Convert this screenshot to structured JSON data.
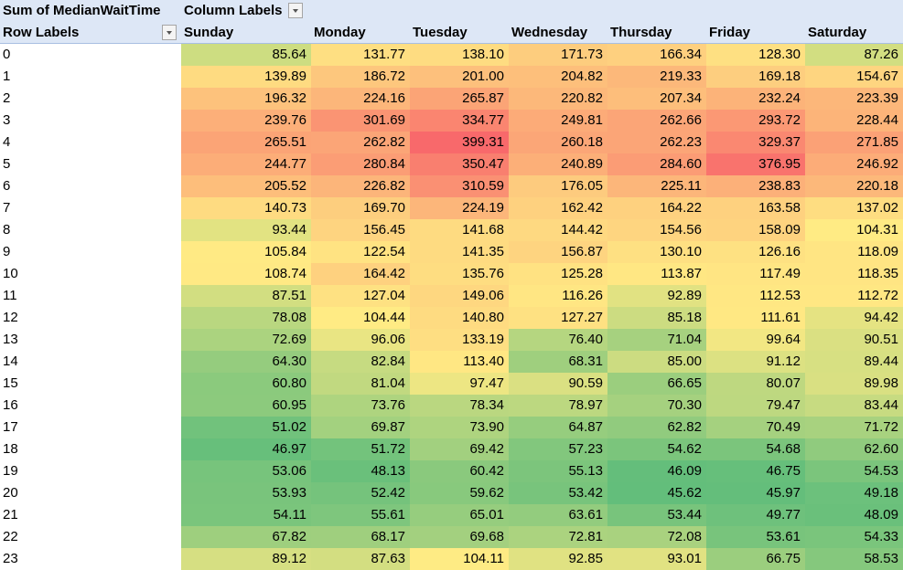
{
  "pivot": {
    "header": {
      "value_field": "Sum of MedianWaitTime",
      "column_labels": "Column Labels",
      "row_labels": "Row Labels"
    },
    "icons": {
      "column_filter": "filter-dropdown-icon",
      "row_filter": "filter-dropdown-icon"
    },
    "columns": [
      "Sunday",
      "Monday",
      "Tuesday",
      "Wednesday",
      "Thursday",
      "Friday",
      "Saturday"
    ],
    "rows": [
      {
        "label": "0",
        "values": [
          "85.64",
          "131.77",
          "138.10",
          "171.73",
          "166.34",
          "128.30",
          "87.26"
        ]
      },
      {
        "label": "1",
        "values": [
          "139.89",
          "186.72",
          "201.00",
          "204.82",
          "219.33",
          "169.18",
          "154.67"
        ]
      },
      {
        "label": "2",
        "values": [
          "196.32",
          "224.16",
          "265.87",
          "220.82",
          "207.34",
          "232.24",
          "223.39"
        ]
      },
      {
        "label": "3",
        "values": [
          "239.76",
          "301.69",
          "334.77",
          "249.81",
          "262.66",
          "293.72",
          "228.44"
        ]
      },
      {
        "label": "4",
        "values": [
          "265.51",
          "262.82",
          "399.31",
          "260.18",
          "262.23",
          "329.37",
          "271.85"
        ]
      },
      {
        "label": "5",
        "values": [
          "244.77",
          "280.84",
          "350.47",
          "240.89",
          "284.60",
          "376.95",
          "246.92"
        ]
      },
      {
        "label": "6",
        "values": [
          "205.52",
          "226.82",
          "310.59",
          "176.05",
          "225.11",
          "238.83",
          "220.18"
        ]
      },
      {
        "label": "7",
        "values": [
          "140.73",
          "169.70",
          "224.19",
          "162.42",
          "164.22",
          "163.58",
          "137.02"
        ]
      },
      {
        "label": "8",
        "values": [
          "93.44",
          "156.45",
          "141.68",
          "144.42",
          "154.56",
          "158.09",
          "104.31"
        ]
      },
      {
        "label": "9",
        "values": [
          "105.84",
          "122.54",
          "141.35",
          "156.87",
          "130.10",
          "126.16",
          "118.09"
        ]
      },
      {
        "label": "10",
        "values": [
          "108.74",
          "164.42",
          "135.76",
          "125.28",
          "113.87",
          "117.49",
          "118.35"
        ]
      },
      {
        "label": "11",
        "values": [
          "87.51",
          "127.04",
          "149.06",
          "116.26",
          "92.89",
          "112.53",
          "112.72"
        ]
      },
      {
        "label": "12",
        "values": [
          "78.08",
          "104.44",
          "140.80",
          "127.27",
          "85.18",
          "111.61",
          "94.42"
        ]
      },
      {
        "label": "13",
        "values": [
          "72.69",
          "96.06",
          "133.19",
          "76.40",
          "71.04",
          "99.64",
          "90.51"
        ]
      },
      {
        "label": "14",
        "values": [
          "64.30",
          "82.84",
          "113.40",
          "68.31",
          "85.00",
          "91.12",
          "89.44"
        ]
      },
      {
        "label": "15",
        "values": [
          "60.80",
          "81.04",
          "97.47",
          "90.59",
          "66.65",
          "80.07",
          "89.98"
        ]
      },
      {
        "label": "16",
        "values": [
          "60.95",
          "73.76",
          "78.34",
          "78.97",
          "70.30",
          "79.47",
          "83.44"
        ]
      },
      {
        "label": "17",
        "values": [
          "51.02",
          "69.87",
          "73.90",
          "64.87",
          "62.82",
          "70.49",
          "71.72"
        ]
      },
      {
        "label": "18",
        "values": [
          "46.97",
          "51.72",
          "69.42",
          "57.23",
          "54.62",
          "54.68",
          "62.60"
        ]
      },
      {
        "label": "19",
        "values": [
          "53.06",
          "48.13",
          "60.42",
          "55.13",
          "46.09",
          "46.75",
          "54.53"
        ]
      },
      {
        "label": "20",
        "values": [
          "53.93",
          "52.42",
          "59.62",
          "53.42",
          "45.62",
          "45.97",
          "49.18"
        ]
      },
      {
        "label": "21",
        "values": [
          "54.11",
          "55.61",
          "65.01",
          "63.61",
          "53.44",
          "49.77",
          "48.09"
        ]
      },
      {
        "label": "22",
        "values": [
          "67.82",
          "68.17",
          "69.68",
          "72.81",
          "72.08",
          "53.61",
          "54.33"
        ]
      },
      {
        "label": "23",
        "values": [
          "89.12",
          "87.63",
          "104.11",
          "92.85",
          "93.01",
          "66.75",
          "58.53"
        ]
      }
    ],
    "color_scale": {
      "low": "#63be7b",
      "mid": "#ffeb84",
      "high": "#f8696b"
    }
  }
}
